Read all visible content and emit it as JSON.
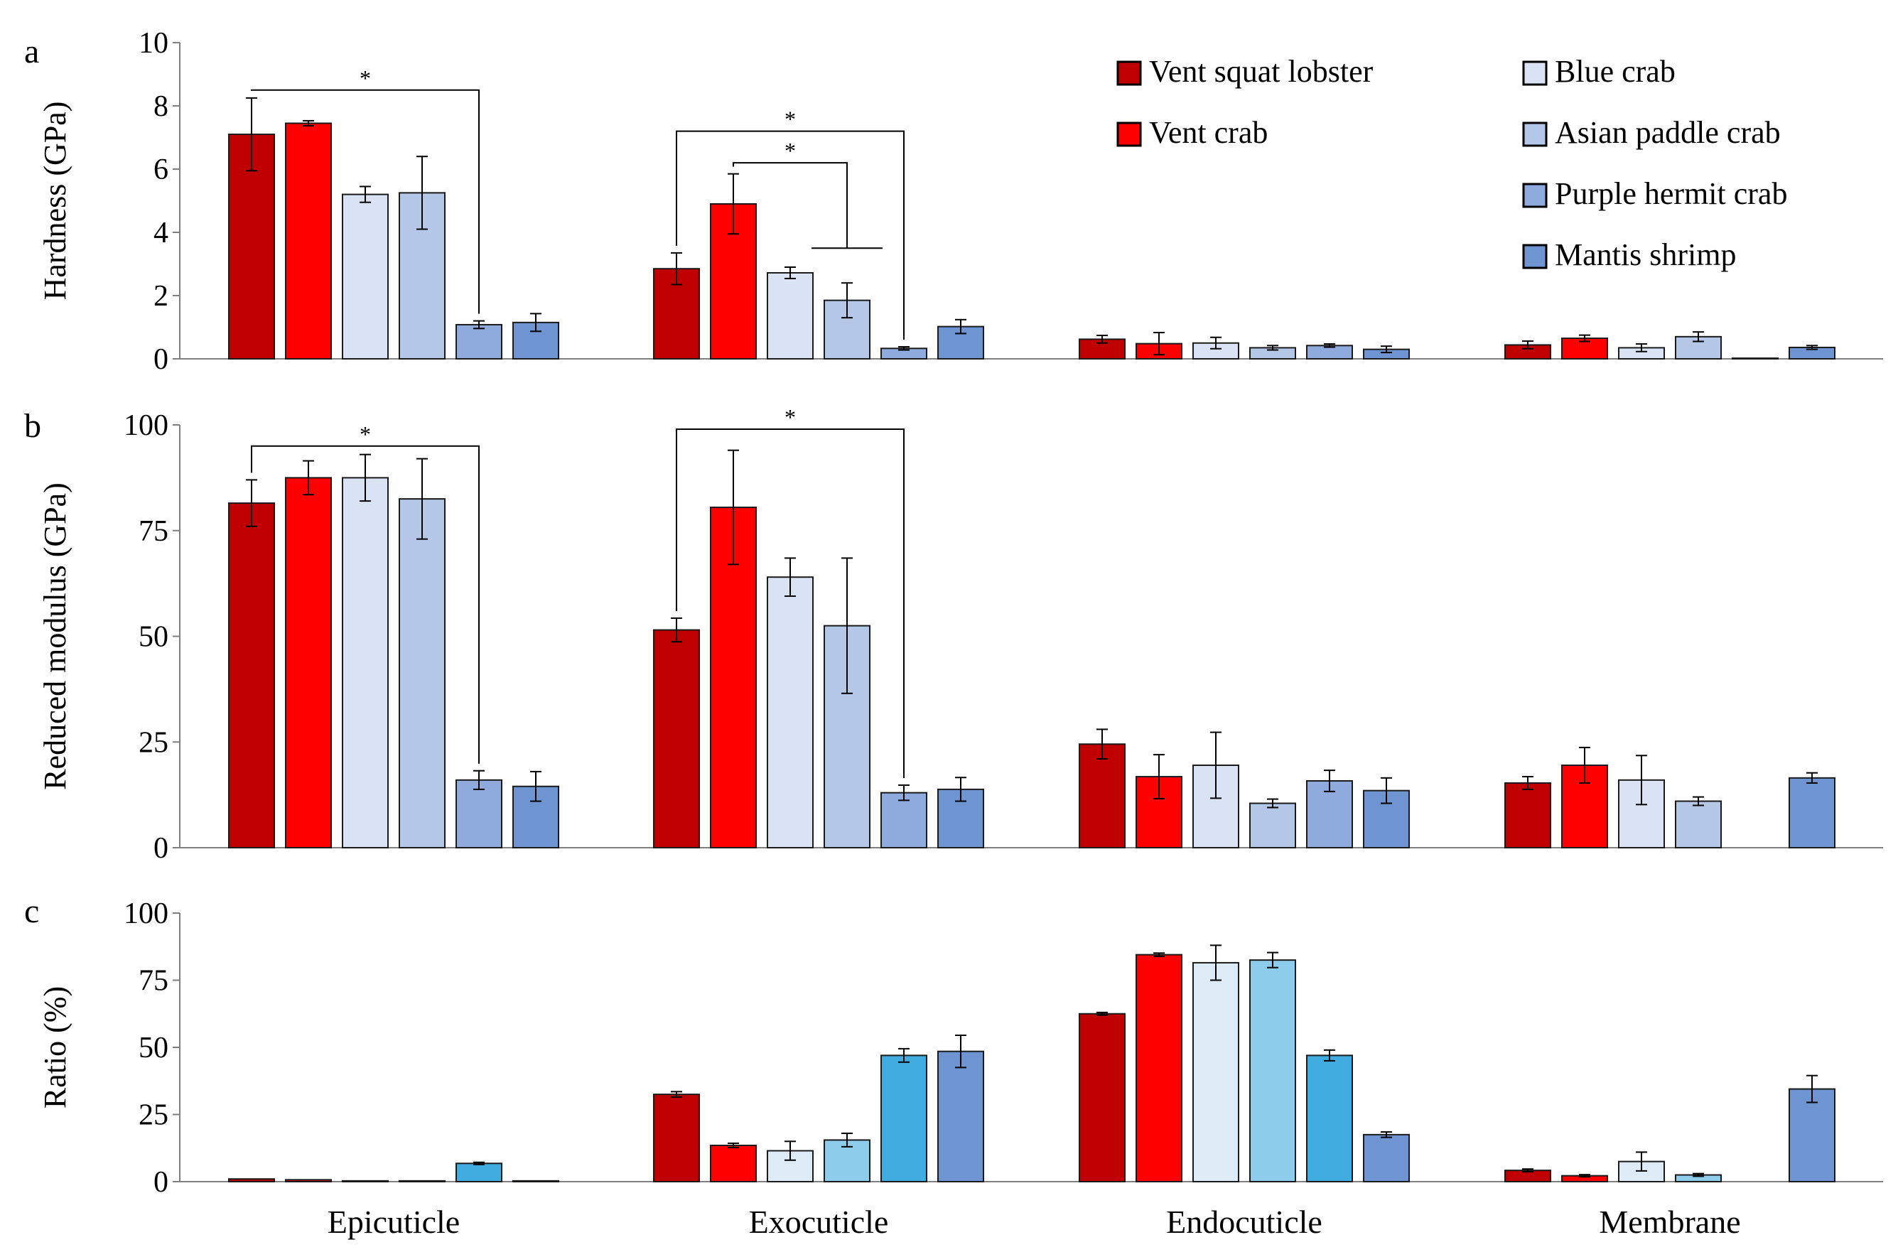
{
  "categories": [
    "Epicuticle",
    "Exocuticle",
    "Endocuticle",
    "Membrane"
  ],
  "legend": [
    {
      "name": "Vent squat lobster",
      "color": "#C00000"
    },
    {
      "name": "Vent crab",
      "color": "#FF0000"
    },
    {
      "name": "Blue crab",
      "color": "#DAE3F3"
    },
    {
      "name": "Asian paddle crab",
      "color": "#B4C7E7"
    },
    {
      "name": "Purple hermit crab",
      "color": "#8FAADC"
    },
    {
      "name": "Mantis shrimp",
      "color": "#6F94D2"
    }
  ],
  "chart_data": [
    {
      "type": "bar",
      "panel_label": "a",
      "ylabel": "Hardness (GPa)",
      "ylim": [
        0,
        10
      ],
      "yticks": [
        0,
        2,
        4,
        6,
        8,
        10
      ],
      "categories": [
        "Epicuticle",
        "Exocuticle",
        "Endocuticle",
        "Membrane"
      ],
      "series": [
        {
          "name": "Vent squat lobster",
          "color": "#C00000",
          "values": [
            7.1,
            2.85,
            0.62,
            0.44
          ],
          "errors": [
            1.15,
            0.5,
            0.12,
            0.12
          ]
        },
        {
          "name": "Vent crab",
          "color": "#FF0000",
          "values": [
            7.45,
            4.9,
            0.48,
            0.65
          ],
          "errors": [
            0.08,
            0.95,
            0.35,
            0.1
          ]
        },
        {
          "name": "Blue crab",
          "color": "#DAE3F3",
          "values": [
            5.2,
            2.72,
            0.5,
            0.35
          ],
          "errors": [
            0.25,
            0.18,
            0.18,
            0.12
          ]
        },
        {
          "name": "Asian paddle crab",
          "color": "#B4C7E7",
          "values": [
            5.25,
            1.85,
            0.35,
            0.7
          ],
          "errors": [
            1.15,
            0.55,
            0.07,
            0.15
          ]
        },
        {
          "name": "Purple hermit crab",
          "color": "#8FAADC",
          "values": [
            1.08,
            0.33,
            0.42,
            0.02
          ],
          "errors": [
            0.12,
            0.05,
            0.05,
            0
          ]
        },
        {
          "name": "Mantis shrimp",
          "color": "#6F94D2",
          "values": [
            1.15,
            1.02,
            0.3,
            0.36
          ],
          "errors": [
            0.28,
            0.22,
            0.1,
            0.06
          ]
        }
      ],
      "significance": [
        {
          "label": "*",
          "from": [
            0,
            0
          ],
          "to": [
            0,
            4
          ],
          "level": 8.5
        },
        {
          "label": "*",
          "from": [
            1,
            0
          ],
          "to": [
            1,
            4
          ],
          "level": 7.2
        },
        {
          "label": "*",
          "from": [
            1,
            1
          ],
          "to": [
            1,
            3
          ],
          "level": 6.2,
          "to_level": 3.5,
          "open_tail": true
        }
      ]
    },
    {
      "type": "bar",
      "panel_label": "b",
      "ylabel": "Reduced modulus (GPa)",
      "ylim": [
        0,
        100
      ],
      "yticks": [
        0,
        25,
        50,
        75,
        100
      ],
      "categories": [
        "Epicuticle",
        "Exocuticle",
        "Endocuticle",
        "Membrane"
      ],
      "series": [
        {
          "name": "Vent squat lobster",
          "color": "#C00000",
          "values": [
            81.5,
            51.5,
            24.5,
            15.3
          ],
          "errors": [
            5.5,
            2.8,
            3.5,
            1.5
          ]
        },
        {
          "name": "Vent crab",
          "color": "#FF0000",
          "values": [
            87.5,
            80.5,
            16.8,
            19.5
          ],
          "errors": [
            4,
            13.5,
            5.2,
            4.2
          ]
        },
        {
          "name": "Blue crab",
          "color": "#DAE3F3",
          "values": [
            87.5,
            64,
            19.5,
            16
          ],
          "errors": [
            5.5,
            4.5,
            7.8,
            5.8
          ]
        },
        {
          "name": "Asian paddle crab",
          "color": "#B4C7E7",
          "values": [
            82.5,
            52.5,
            10.5,
            11
          ],
          "errors": [
            9.5,
            16,
            1,
            1
          ]
        },
        {
          "name": "Purple hermit crab",
          "color": "#8FAADC",
          "values": [
            16,
            13,
            15.8,
            0
          ],
          "errors": [
            2.2,
            1.8,
            2.5,
            0
          ]
        },
        {
          "name": "Mantis shrimp",
          "color": "#6F94D2",
          "values": [
            14.5,
            13.8,
            13.5,
            16.5
          ],
          "errors": [
            3.5,
            2.8,
            3,
            1.2
          ]
        }
      ],
      "significance": [
        {
          "label": "*",
          "from": [
            0,
            0
          ],
          "to": [
            0,
            4
          ],
          "level": 95
        },
        {
          "label": "*",
          "from": [
            1,
            0
          ],
          "to": [
            1,
            4
          ],
          "level": 99
        }
      ]
    },
    {
      "type": "bar",
      "panel_label": "c",
      "ylabel": "Ratio (%)",
      "ylim": [
        0,
        100
      ],
      "yticks": [
        0,
        25,
        50,
        75,
        100
      ],
      "xlabel": "",
      "categories": [
        "Epicuticle",
        "Exocuticle",
        "Endocuticle",
        "Membrane"
      ],
      "series": [
        {
          "name": "Vent squat lobster",
          "color": "#C00000",
          "values": [
            1,
            32.5,
            62.5,
            4.2
          ],
          "errors": [
            0,
            1,
            0.5,
            0.5
          ]
        },
        {
          "name": "Vent crab",
          "color": "#FF0000",
          "values": [
            0.7,
            13.5,
            84.5,
            2.2
          ],
          "errors": [
            0,
            0.8,
            0.6,
            0.4
          ]
        },
        {
          "name": "Blue crab",
          "color": "#DDEBF7",
          "values": [
            0.3,
            11.5,
            81.5,
            7.5
          ],
          "errors": [
            0,
            3.5,
            6.5,
            3.5
          ]
        },
        {
          "name": "Asian paddle crab",
          "color": "#8ECCEC",
          "values": [
            0.3,
            15.5,
            82.5,
            2.5
          ],
          "errors": [
            0,
            2.5,
            2.8,
            0.5
          ]
        },
        {
          "name": "Purple hermit crab",
          "color": "#40ACE0",
          "values": [
            6.8,
            47,
            47,
            0
          ],
          "errors": [
            0.4,
            2.5,
            2,
            0
          ]
        },
        {
          "name": "Mantis shrimp",
          "color": "#6F94D2",
          "values": [
            0.3,
            48.5,
            17.5,
            34.5
          ],
          "errors": [
            0,
            6,
            1,
            5
          ]
        }
      ],
      "significance": []
    }
  ]
}
